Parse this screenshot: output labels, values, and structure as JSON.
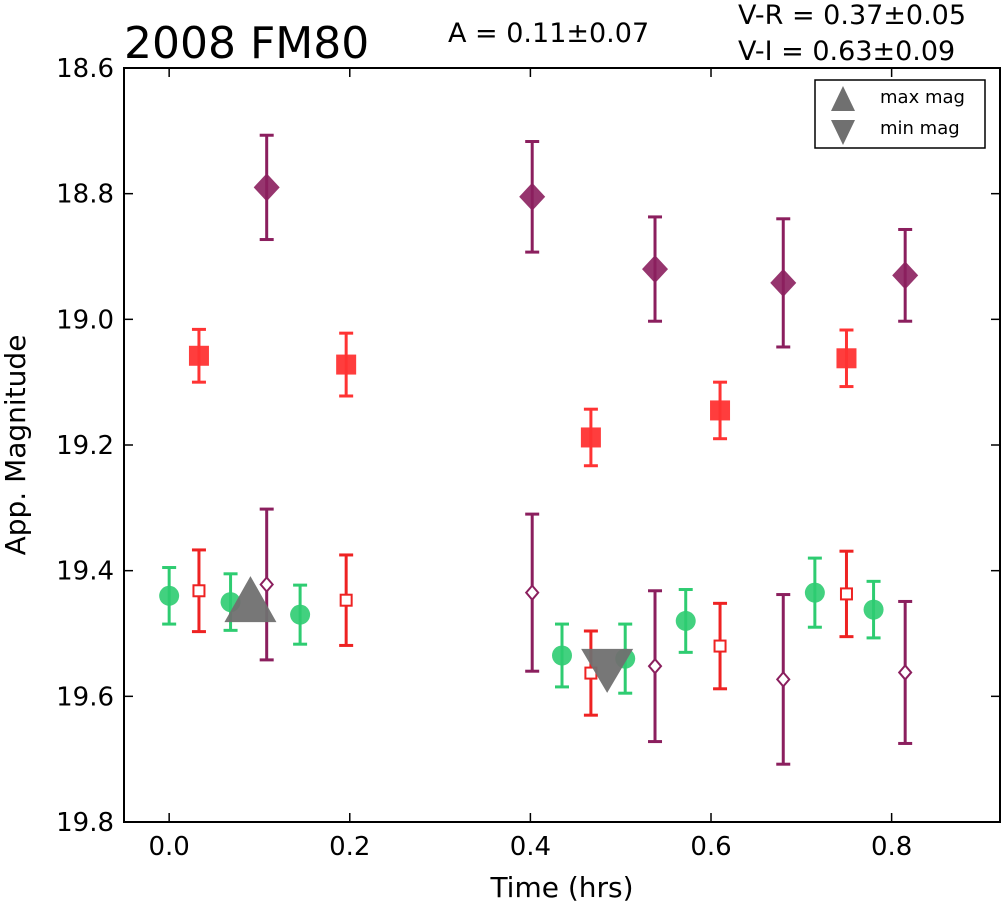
{
  "chart_data": {
    "type": "scatter",
    "title": "2008 FM80",
    "annotations": {
      "amplitude": "A  = 0.11±0.07",
      "v_r": "V-R = 0.37±0.05",
      "v_i": "V-I  = 0.63±0.09"
    },
    "xlabel": "Time (hrs)",
    "ylabel": "App. Magnitude",
    "xlim": [
      -0.05,
      0.92
    ],
    "ylim": [
      19.8,
      18.6
    ],
    "y_inverted": true,
    "grid": false,
    "x_ticks": [
      "0.0",
      "0.2",
      "0.4",
      "0.6",
      "0.8"
    ],
    "y_ticks": [
      "18.6",
      "18.8",
      "19.0",
      "19.2",
      "19.4",
      "19.6",
      "19.8"
    ],
    "legend_position": "top-right",
    "legend": [
      {
        "label": "max mag",
        "marker": "triangle-up",
        "color": "#707070"
      },
      {
        "label": "min mag",
        "marker": "triangle-down",
        "color": "#707070"
      }
    ],
    "series": [
      {
        "marker": "circle",
        "color": "#2ecc71",
        "points": [
          {
            "x": 0.0,
            "y": 19.44,
            "err": 0.045
          },
          {
            "x": 0.068,
            "y": 19.45,
            "err": 0.045
          },
          {
            "x": 0.145,
            "y": 19.47,
            "err": 0.047
          },
          {
            "x": 0.435,
            "y": 19.535,
            "err": 0.05
          },
          {
            "x": 0.505,
            "y": 19.54,
            "err": 0.055
          },
          {
            "x": 0.572,
            "y": 19.48,
            "err": 0.05
          },
          {
            "x": 0.715,
            "y": 19.435,
            "err": 0.055
          },
          {
            "x": 0.78,
            "y": 19.462,
            "err": 0.045
          }
        ]
      },
      {
        "marker": "square",
        "color": "#ff3333",
        "points": [
          {
            "x": 0.033,
            "y": 19.058,
            "err": 0.042
          },
          {
            "x": 0.196,
            "y": 19.072,
            "err": 0.05
          },
          {
            "x": 0.467,
            "y": 19.188,
            "err": 0.045
          },
          {
            "x": 0.61,
            "y": 19.145,
            "err": 0.045
          },
          {
            "x": 0.75,
            "y": 19.062,
            "err": 0.045
          }
        ]
      },
      {
        "marker": "square-open",
        "color": "#ee2222",
        "points": [
          {
            "x": 0.033,
            "y": 19.432,
            "err": 0.065
          },
          {
            "x": 0.196,
            "y": 19.447,
            "err": 0.072
          },
          {
            "x": 0.467,
            "y": 19.563,
            "err": 0.067
          },
          {
            "x": 0.61,
            "y": 19.52,
            "err": 0.068
          },
          {
            "x": 0.75,
            "y": 19.437,
            "err": 0.068
          }
        ]
      },
      {
        "marker": "diamond",
        "color": "#8b1f5e",
        "points": [
          {
            "x": 0.108,
            "y": 18.79,
            "err": 0.083
          },
          {
            "x": 0.402,
            "y": 18.805,
            "err": 0.088
          },
          {
            "x": 0.538,
            "y": 18.92,
            "err": 0.083
          },
          {
            "x": 0.68,
            "y": 18.942,
            "err": 0.102
          },
          {
            "x": 0.815,
            "y": 18.93,
            "err": 0.073
          }
        ]
      },
      {
        "marker": "diamond-open",
        "color": "#8b1f5e",
        "points": [
          {
            "x": 0.108,
            "y": 19.422,
            "err": 0.12
          },
          {
            "x": 0.402,
            "y": 19.435,
            "err": 0.125
          },
          {
            "x": 0.538,
            "y": 19.552,
            "err": 0.12
          },
          {
            "x": 0.68,
            "y": 19.573,
            "err": 0.135
          },
          {
            "x": 0.815,
            "y": 19.562,
            "err": 0.113
          }
        ]
      }
    ],
    "extrema": [
      {
        "label": "max mag",
        "marker": "triangle-up",
        "color": "#707070",
        "x": 0.09,
        "y": 19.45
      },
      {
        "label": "min mag",
        "marker": "triangle-down",
        "color": "#707070",
        "x": 0.485,
        "y": 19.55
      }
    ]
  }
}
